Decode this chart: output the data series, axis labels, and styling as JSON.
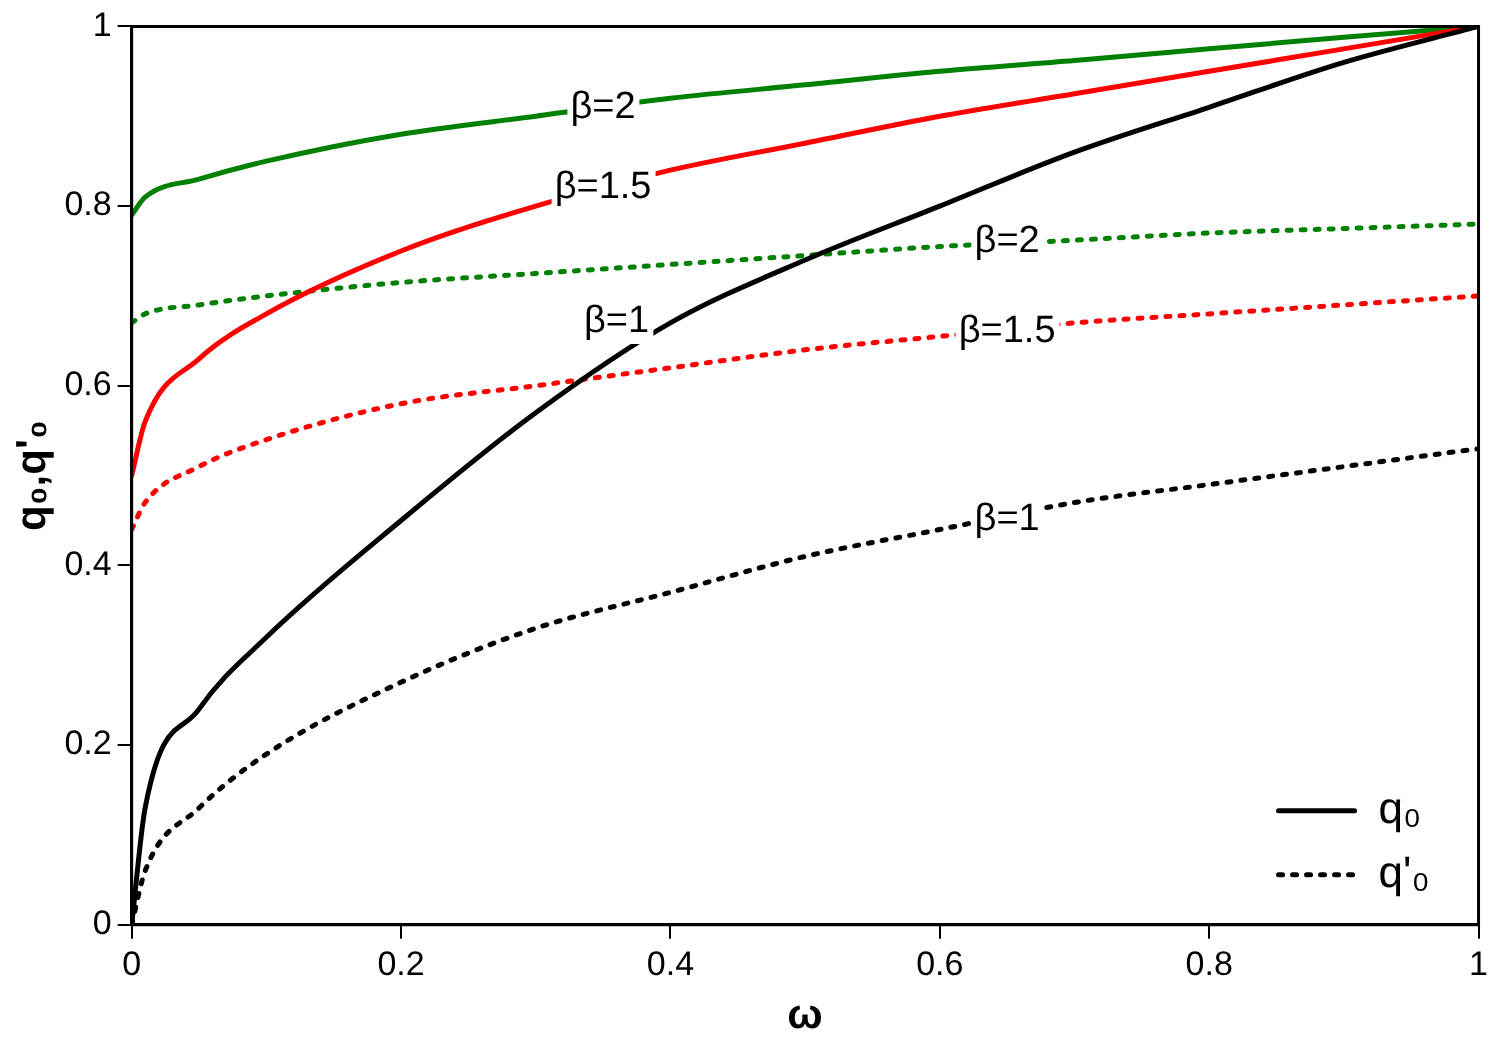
{
  "chart_data": {
    "type": "line",
    "xlabel": "ω",
    "ylabel": "q₀,q'₀",
    "x": [
      0,
      0.01,
      0.05,
      0.1,
      0.2,
      0.3,
      0.4,
      0.5,
      0.6,
      0.7,
      0.8,
      0.9,
      1
    ],
    "series": [
      {
        "name": "q₀",
        "color": "#000000",
        "line_style": "solid",
        "values": [
          0,
          0.13,
          0.24,
          0.32,
          0.45,
          0.57,
          0.67,
          0.74,
          0.8,
          0.86,
          0.91,
          0.96,
          1
        ]
      },
      {
        "color": "#ff0000",
        "line_style": "solid",
        "values": [
          0.5,
          0.56,
          0.63,
          0.68,
          0.75,
          0.8,
          0.84,
          0.87,
          0.9,
          0.925,
          0.95,
          0.975,
          1
        ]
      },
      {
        "color": "#008000",
        "line_style": "solid",
        "values": [
          0.79,
          0.81,
          0.83,
          0.85,
          0.88,
          0.9,
          0.92,
          0.935,
          0.95,
          0.962,
          0.975,
          0.988,
          1
        ]
      },
      {
        "name": "q'₀",
        "color": "#000000",
        "line_style": "dotted",
        "values": [
          0,
          0.06,
          0.13,
          0.19,
          0.27,
          0.33,
          0.37,
          0.41,
          0.44,
          0.47,
          0.49,
          0.51,
          0.53
        ]
      },
      {
        "color": "#ff0000",
        "line_style": "dotted",
        "values": [
          0.44,
          0.47,
          0.51,
          0.54,
          0.58,
          0.6,
          0.62,
          0.64,
          0.655,
          0.67,
          0.68,
          0.69,
          0.7
        ]
      },
      {
        "color": "#008000",
        "line_style": "dotted",
        "values": [
          0.67,
          0.68,
          0.69,
          0.7,
          0.715,
          0.725,
          0.735,
          0.745,
          0.755,
          0.762,
          0.77,
          0.775,
          0.78
        ]
      }
    ],
    "annotations": [
      {
        "text": "β=2",
        "x": 0.35,
        "y": 0.91
      },
      {
        "text": "β=1.5",
        "x": 0.35,
        "y": 0.82
      },
      {
        "text": "β=1",
        "x": 0.36,
        "y": 0.67
      },
      {
        "text": "β=2",
        "x": 0.65,
        "y": 0.76
      },
      {
        "text": "β=1.5",
        "x": 0.65,
        "y": 0.66
      },
      {
        "text": "β=1",
        "x": 0.65,
        "y": 0.45
      }
    ],
    "xlim": [
      0,
      1
    ],
    "ylim": [
      0,
      1
    ],
    "xticks": [
      0,
      0.2,
      0.4,
      0.6,
      0.8,
      1
    ],
    "yticks": [
      0,
      0.2,
      0.4,
      0.6,
      0.8,
      1
    ],
    "grid": false,
    "legend": "bottom right",
    "marker": "none"
  }
}
